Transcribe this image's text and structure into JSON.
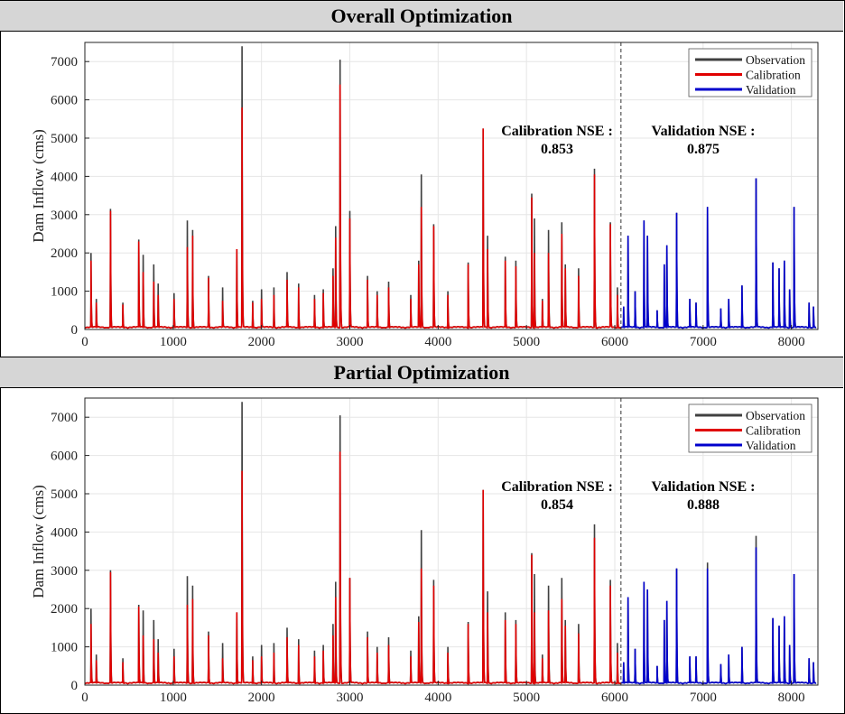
{
  "chart_data": [
    {
      "type": "line",
      "title": "Overall  Optimization",
      "xlabel": "",
      "ylabel": "Dam Inflow (cms)",
      "xlim": [
        0,
        8300
      ],
      "ylim": [
        0,
        7500
      ],
      "x_ticks": [
        0,
        1000,
        2000,
        3000,
        4000,
        5000,
        6000,
        7000,
        8000
      ],
      "y_ticks": [
        0,
        1000,
        2000,
        3000,
        4000,
        5000,
        6000,
        7000
      ],
      "grid": true,
      "legend_position": "top-right",
      "split_x": 6070,
      "series": [
        {
          "name": "Observation",
          "color": "#404040"
        },
        {
          "name": "Calibration",
          "color": "#e00000"
        },
        {
          "name": "Validation",
          "color": "#0000cc"
        }
      ],
      "annotations": {
        "calibration_label": "Calibration NSE :",
        "calibration_value": "0.853",
        "validation_label": "Validation NSE :",
        "validation_value": "0.875"
      },
      "peaks": [
        [
          70,
          2000,
          1800
        ],
        [
          130,
          800,
          700
        ],
        [
          290,
          3150,
          3100
        ],
        [
          430,
          700,
          650
        ],
        [
          610,
          2350,
          2300
        ],
        [
          660,
          1950,
          1500
        ],
        [
          780,
          1700,
          1250
        ],
        [
          830,
          1200,
          900
        ],
        [
          1010,
          950,
          800
        ],
        [
          1160,
          2850,
          2150
        ],
        [
          1220,
          2600,
          2450
        ],
        [
          1400,
          1400,
          1350
        ],
        [
          1560,
          1100,
          750
        ],
        [
          1720,
          2100,
          2100
        ],
        [
          1780,
          7400,
          5800
        ],
        [
          1900,
          750,
          700
        ],
        [
          2000,
          1050,
          800
        ],
        [
          2140,
          1100,
          900
        ],
        [
          2290,
          1500,
          1300
        ],
        [
          2420,
          1200,
          1100
        ],
        [
          2600,
          900,
          800
        ],
        [
          2700,
          1050,
          950
        ],
        [
          2810,
          1600,
          1400
        ],
        [
          2840,
          2700,
          2400
        ],
        [
          2890,
          7050,
          6400
        ],
        [
          3000,
          3100,
          2900
        ],
        [
          3200,
          1400,
          1300
        ],
        [
          3310,
          1000,
          900
        ],
        [
          3440,
          1250,
          1100
        ],
        [
          3690,
          900,
          800
        ],
        [
          3780,
          1800,
          1700
        ],
        [
          3810,
          4050,
          3200
        ],
        [
          3950,
          2750,
          2700
        ],
        [
          4110,
          1000,
          900
        ],
        [
          4340,
          1750,
          1700
        ],
        [
          4510,
          5250,
          5250
        ],
        [
          4560,
          2450,
          2100
        ],
        [
          4760,
          1900,
          1800
        ],
        [
          4880,
          1800,
          1650
        ],
        [
          5060,
          3550,
          3450
        ],
        [
          5090,
          2900,
          2000
        ],
        [
          5180,
          800,
          750
        ],
        [
          5250,
          2600,
          2000
        ],
        [
          5400,
          2800,
          2500
        ],
        [
          5440,
          1700,
          1600
        ],
        [
          5590,
          1600,
          1400
        ],
        [
          5770,
          4200,
          4050
        ],
        [
          5950,
          2800,
          2750
        ],
        [
          6030,
          1100,
          900
        ],
        [
          6100,
          600,
          600
        ],
        [
          6150,
          2450,
          2450
        ],
        [
          6230,
          1000,
          1000
        ],
        [
          6330,
          2850,
          2850
        ],
        [
          6370,
          2450,
          2450
        ],
        [
          6480,
          500,
          500
        ],
        [
          6560,
          1700,
          1700
        ],
        [
          6590,
          2200,
          2200
        ],
        [
          6700,
          3050,
          3050
        ],
        [
          6850,
          800,
          800
        ],
        [
          6920,
          700,
          700
        ],
        [
          7050,
          3200,
          3200
        ],
        [
          7200,
          550,
          550
        ],
        [
          7290,
          800,
          800
        ],
        [
          7440,
          1150,
          1150
        ],
        [
          7600,
          3950,
          3950
        ],
        [
          7790,
          1750,
          1750
        ],
        [
          7860,
          1600,
          1600
        ],
        [
          7920,
          1800,
          1800
        ],
        [
          7980,
          1050,
          1050
        ],
        [
          8030,
          3200,
          3200
        ],
        [
          8200,
          700,
          700
        ],
        [
          8250,
          600,
          600
        ]
      ]
    },
    {
      "type": "line",
      "title": "Partial  Optimization",
      "xlabel": "",
      "ylabel": "Dam Inflow (cms)",
      "xlim": [
        0,
        8300
      ],
      "ylim": [
        0,
        7500
      ],
      "x_ticks": [
        0,
        1000,
        2000,
        3000,
        4000,
        5000,
        6000,
        7000,
        8000
      ],
      "y_ticks": [
        0,
        1000,
        2000,
        3000,
        4000,
        5000,
        6000,
        7000
      ],
      "grid": true,
      "legend_position": "top-right",
      "split_x": 6070,
      "series": [
        {
          "name": "Observation",
          "color": "#404040"
        },
        {
          "name": "Calibration",
          "color": "#e00000"
        },
        {
          "name": "Validation",
          "color": "#0000cc"
        }
      ],
      "annotations": {
        "calibration_label": "Calibration NSE :",
        "calibration_value": "0.854",
        "validation_label": "Validation NSE :",
        "validation_value": "0.888"
      },
      "peaks": [
        [
          70,
          2000,
          1600
        ],
        [
          130,
          800,
          650
        ],
        [
          290,
          3000,
          2950
        ],
        [
          430,
          700,
          600
        ],
        [
          610,
          2100,
          2050
        ],
        [
          660,
          1950,
          1300
        ],
        [
          780,
          1700,
          1200
        ],
        [
          830,
          1200,
          850
        ],
        [
          1010,
          950,
          750
        ],
        [
          1160,
          2850,
          2100
        ],
        [
          1220,
          2600,
          2250
        ],
        [
          1400,
          1400,
          1300
        ],
        [
          1560,
          1100,
          700
        ],
        [
          1720,
          1900,
          1900
        ],
        [
          1780,
          7400,
          5600
        ],
        [
          1900,
          750,
          650
        ],
        [
          2000,
          1050,
          750
        ],
        [
          2140,
          1100,
          850
        ],
        [
          2290,
          1500,
          1250
        ],
        [
          2420,
          1200,
          1050
        ],
        [
          2600,
          900,
          750
        ],
        [
          2700,
          1050,
          900
        ],
        [
          2810,
          1600,
          1300
        ],
        [
          2840,
          2700,
          2300
        ],
        [
          2890,
          7050,
          6100
        ],
        [
          3000,
          2800,
          2800
        ],
        [
          3200,
          1400,
          1250
        ],
        [
          3310,
          1000,
          850
        ],
        [
          3440,
          1250,
          1050
        ],
        [
          3690,
          900,
          750
        ],
        [
          3780,
          1800,
          1650
        ],
        [
          3810,
          4050,
          3050
        ],
        [
          3950,
          2750,
          2600
        ],
        [
          4110,
          1000,
          850
        ],
        [
          4340,
          1650,
          1600
        ],
        [
          4510,
          5100,
          5100
        ],
        [
          4560,
          2450,
          1900
        ],
        [
          4760,
          1900,
          1700
        ],
        [
          4880,
          1700,
          1600
        ],
        [
          5060,
          3450,
          3400
        ],
        [
          5090,
          2900,
          1900
        ],
        [
          5180,
          800,
          700
        ],
        [
          5250,
          2600,
          1950
        ],
        [
          5400,
          2800,
          2250
        ],
        [
          5440,
          1700,
          1550
        ],
        [
          5590,
          1600,
          1350
        ],
        [
          5770,
          4200,
          3850
        ],
        [
          5950,
          2750,
          2600
        ],
        [
          6030,
          1100,
          850
        ],
        [
          6100,
          600,
          600
        ],
        [
          6150,
          2300,
          2300
        ],
        [
          6230,
          950,
          950
        ],
        [
          6330,
          2700,
          2700
        ],
        [
          6370,
          2500,
          2500
        ],
        [
          6480,
          500,
          500
        ],
        [
          6560,
          1700,
          1700
        ],
        [
          6590,
          2200,
          2200
        ],
        [
          6700,
          3050,
          3050
        ],
        [
          6850,
          750,
          750
        ],
        [
          6920,
          750,
          750
        ],
        [
          7050,
          3200,
          3050
        ],
        [
          7200,
          550,
          550
        ],
        [
          7290,
          800,
          800
        ],
        [
          7440,
          1000,
          1000
        ],
        [
          7600,
          3900,
          3600
        ],
        [
          7790,
          1750,
          1750
        ],
        [
          7860,
          1550,
          1550
        ],
        [
          7920,
          1800,
          1800
        ],
        [
          7980,
          1050,
          1050
        ],
        [
          8030,
          2900,
          2900
        ],
        [
          8200,
          700,
          700
        ],
        [
          8250,
          600,
          600
        ]
      ]
    }
  ]
}
